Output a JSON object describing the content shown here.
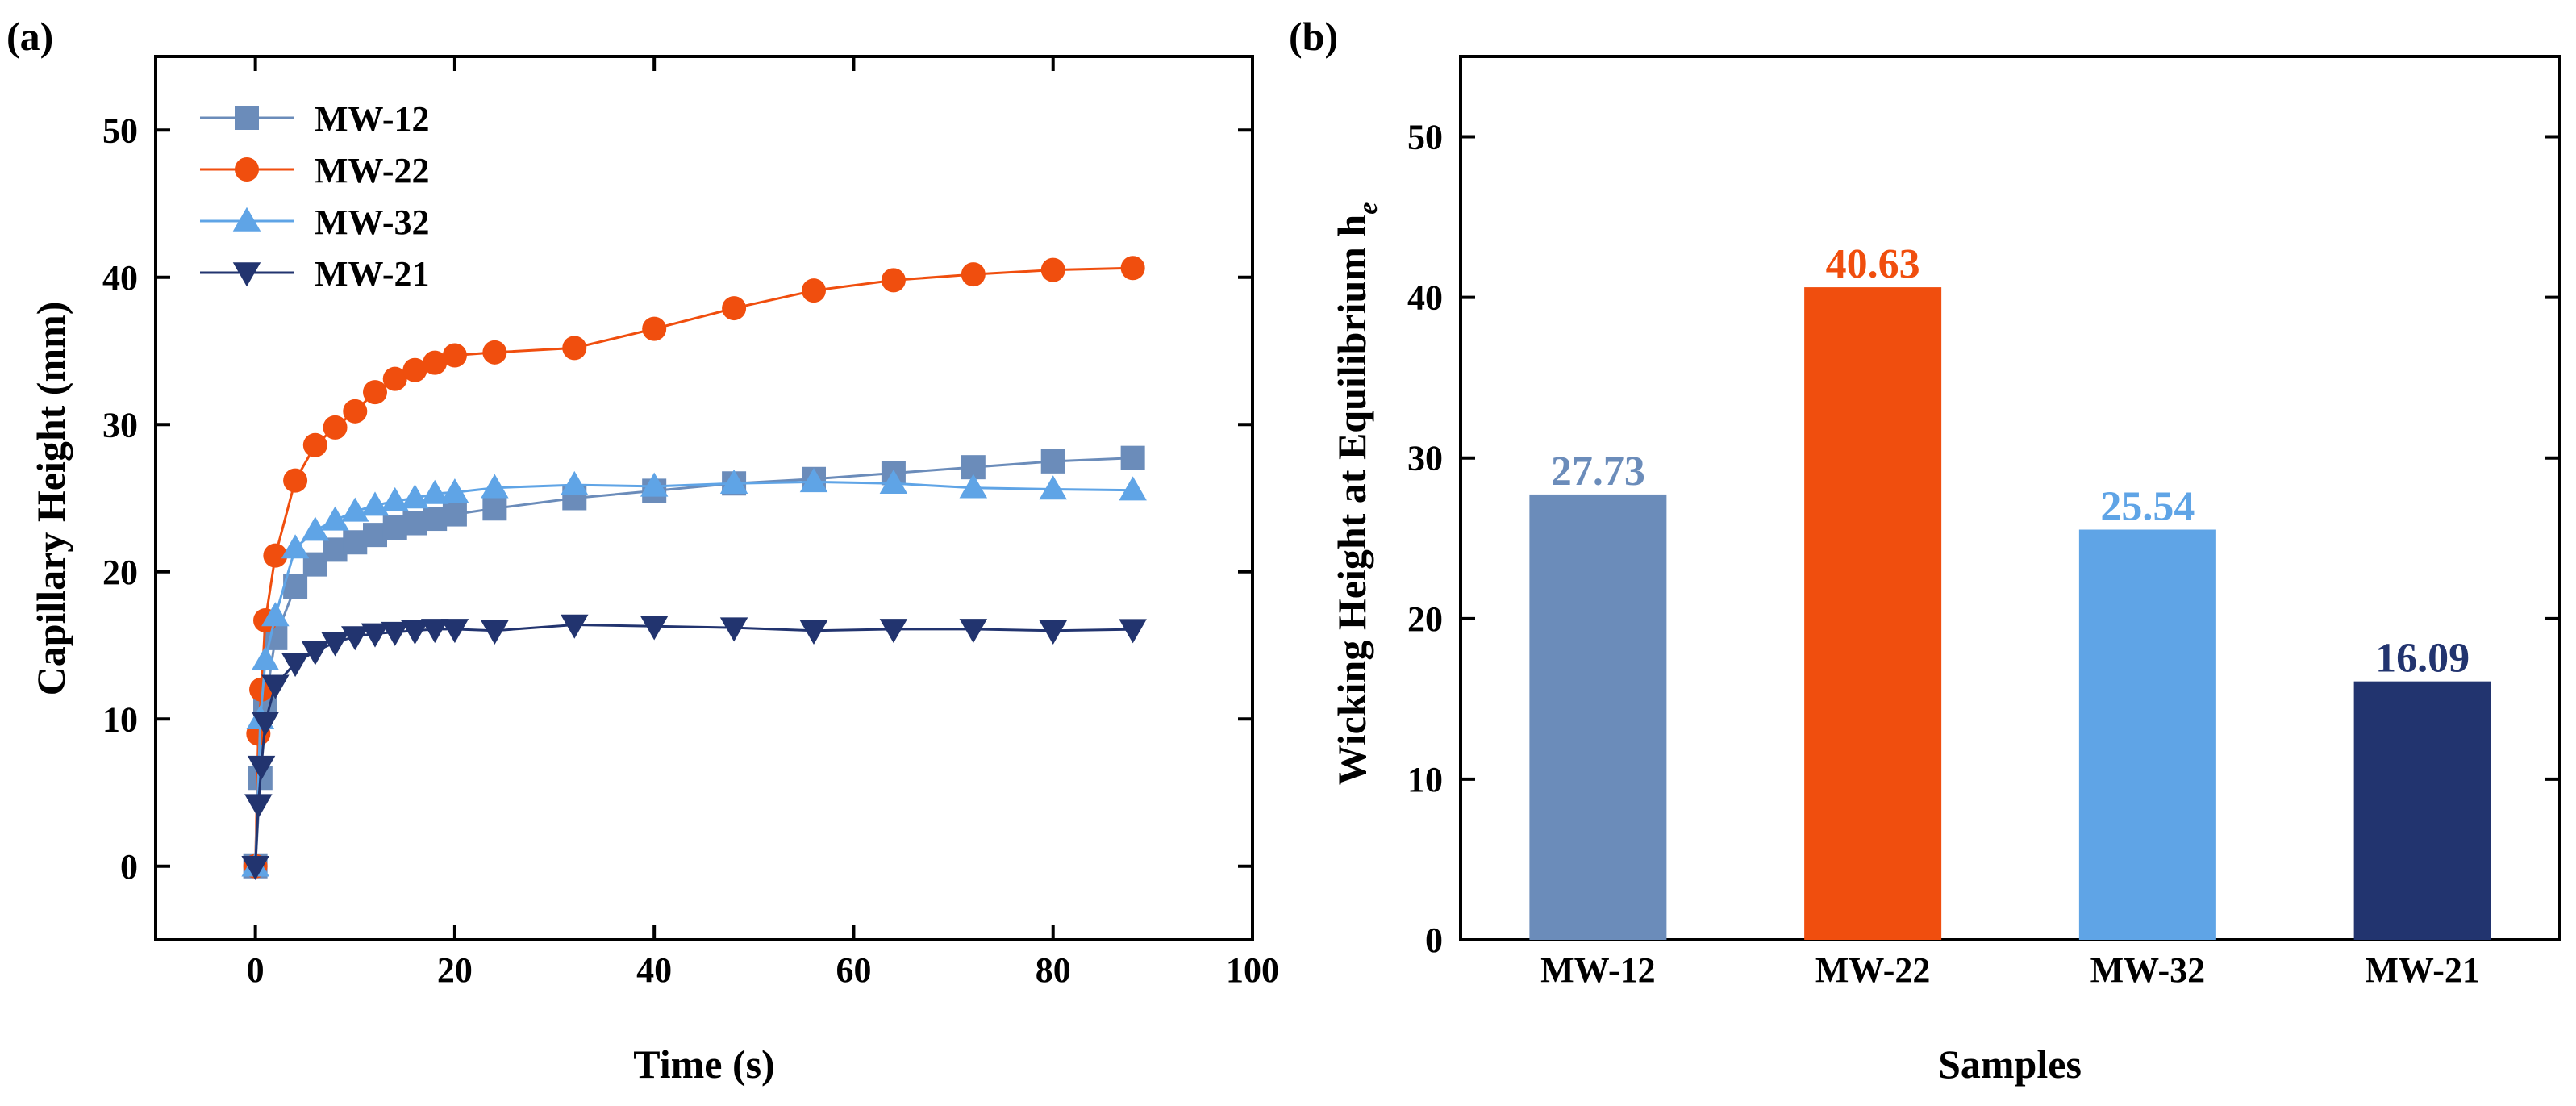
{
  "figure": {
    "colors": {
      "MW-12": "#6b8cba",
      "MW-22": "#f04e0e",
      "MW-32": "#5fa4e6",
      "MW-21": "#22346f",
      "axis": "#000000",
      "background": "#ffffff"
    }
  },
  "chart_data": [
    {
      "panel_label": "(a)",
      "type": "line",
      "title": "",
      "xlabel": "Time (s)",
      "ylabel": "Capillary Height (mm)",
      "xlim": [
        -10,
        100
      ],
      "ylim": [
        -5,
        55
      ],
      "xticks": [
        0,
        20,
        40,
        60,
        80,
        100
      ],
      "yticks": [
        0,
        10,
        20,
        30,
        40,
        50
      ],
      "grid": false,
      "legend_position": "top-left",
      "series": [
        {
          "name": "MW-12",
          "marker": "square",
          "x": [
            0,
            0.5,
            1,
            2,
            4,
            6,
            8,
            10,
            12,
            14,
            16,
            18,
            20,
            24,
            32,
            40,
            48,
            56,
            64,
            72,
            80,
            88
          ],
          "y": [
            0,
            6,
            11,
            15.5,
            19,
            20.5,
            21.5,
            22,
            22.5,
            23,
            23.3,
            23.6,
            23.9,
            24.3,
            25,
            25.5,
            26,
            26.3,
            26.7,
            27.1,
            27.5,
            27.73
          ]
        },
        {
          "name": "MW-22",
          "marker": "circle",
          "x": [
            0,
            0.3,
            0.6,
            1,
            2,
            4,
            6,
            8,
            10,
            12,
            14,
            16,
            18,
            20,
            24,
            32,
            40,
            48,
            56,
            64,
            72,
            80,
            88
          ],
          "y": [
            0,
            9,
            12,
            16.7,
            21.1,
            26.2,
            28.6,
            29.8,
            30.9,
            32.2,
            33.1,
            33.7,
            34.2,
            34.7,
            34.9,
            35.2,
            36.5,
            37.9,
            39.1,
            39.8,
            40.2,
            40.5,
            40.63
          ]
        },
        {
          "name": "MW-32",
          "marker": "triangle-up",
          "x": [
            0,
            0.5,
            1,
            2,
            4,
            6,
            8,
            10,
            12,
            14,
            16,
            18,
            20,
            24,
            32,
            40,
            48,
            56,
            64,
            72,
            80,
            88
          ],
          "y": [
            0,
            10,
            14,
            17,
            21.6,
            22.8,
            23.5,
            24.1,
            24.5,
            24.8,
            25,
            25.3,
            25.4,
            25.7,
            25.9,
            25.8,
            26,
            26.1,
            26,
            25.7,
            25.6,
            25.54
          ]
        },
        {
          "name": "MW-21",
          "marker": "triangle-down",
          "x": [
            0,
            0.3,
            0.6,
            1,
            2,
            4,
            6,
            8,
            10,
            12,
            14,
            16,
            18,
            20,
            24,
            32,
            40,
            48,
            56,
            64,
            72,
            80,
            88
          ],
          "y": [
            0,
            4.2,
            6.8,
            9.8,
            12.3,
            13.8,
            14.6,
            15.2,
            15.6,
            15.8,
            15.9,
            16,
            16.1,
            16.1,
            16,
            16.4,
            16.3,
            16.2,
            16,
            16.1,
            16.1,
            16,
            16.09
          ]
        }
      ]
    },
    {
      "panel_label": "(b)",
      "type": "bar",
      "title": "",
      "xlabel": "Samples",
      "ylabel": "Wicking Height at Equilibrium h",
      "ylabel_subscript": "e",
      "ylim": [
        0,
        55
      ],
      "yticks": [
        0,
        10,
        20,
        30,
        40,
        50
      ],
      "grid": false,
      "categories": [
        "MW-12",
        "MW-22",
        "MW-32",
        "MW-21"
      ],
      "values": [
        27.73,
        40.63,
        25.54,
        16.09
      ],
      "data_labels": [
        "27.73",
        "40.63",
        "25.54",
        "16.09"
      ]
    }
  ]
}
